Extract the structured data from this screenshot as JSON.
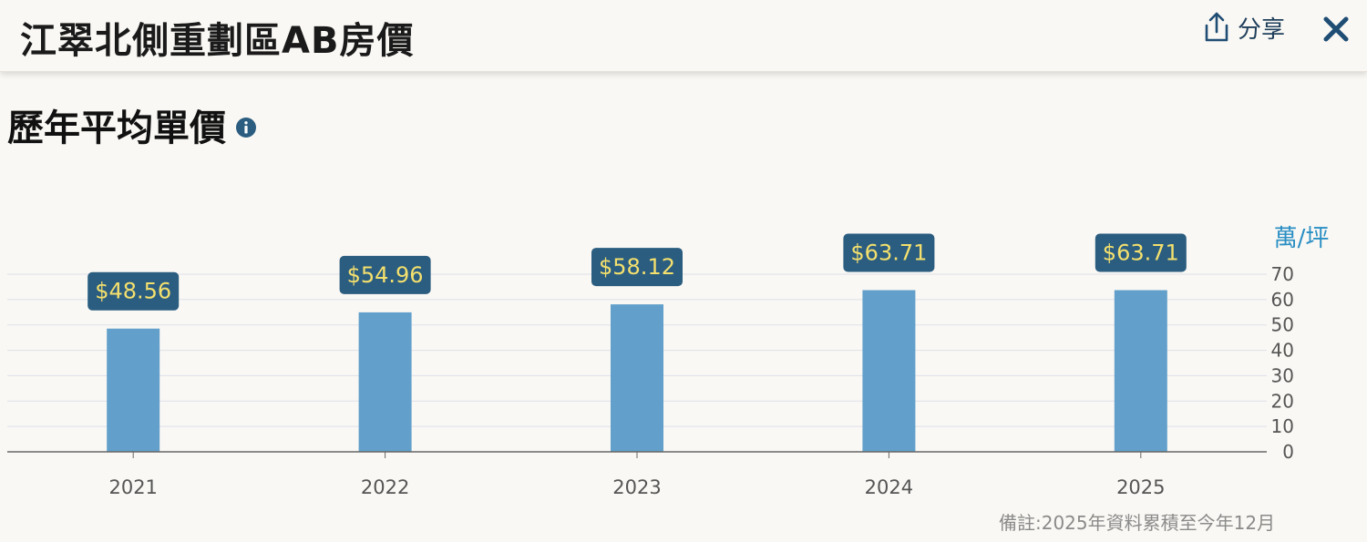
{
  "header": {
    "title": "江翠北側重劃區AB房價",
    "share_label": "分享",
    "share_icon": "share-icon",
    "close_icon": "close-icon"
  },
  "section": {
    "title": "歷年平均單價",
    "info_icon": "info-icon"
  },
  "note": "備註:2025年資料累積至今年12月",
  "colors": {
    "bar": "#62a0cb",
    "label_bg": "#2b5d80",
    "label_text": "#f4e06d",
    "unit_text": "#2a8fc4",
    "accent": "#1f4d74"
  },
  "chart_data": {
    "type": "bar",
    "categories": [
      "2021",
      "2022",
      "2023",
      "2024",
      "2025"
    ],
    "values": [
      48.56,
      54.96,
      58.12,
      63.71,
      63.71
    ],
    "value_labels": [
      "$48.56",
      "$54.96",
      "$58.12",
      "$63.71",
      "$63.71"
    ],
    "ylabel": "萬/坪",
    "ylim": [
      0,
      70
    ],
    "yticks": [
      0,
      10,
      20,
      30,
      40,
      50,
      60,
      70
    ],
    "y_axis_side": "right",
    "grid": true
  }
}
